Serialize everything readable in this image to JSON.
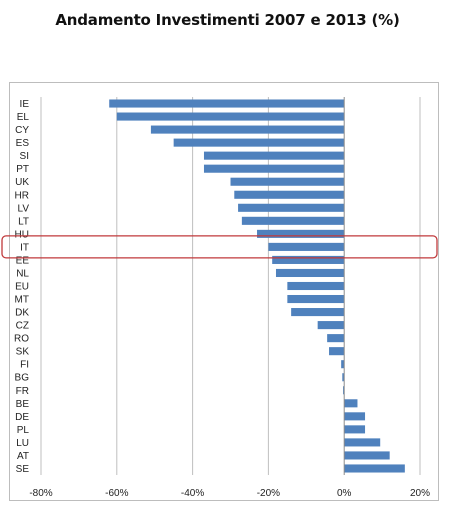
{
  "page": {
    "title": "Andamento Investimenti 2007 e 2013 (%)"
  },
  "colors": {
    "bar": "#4f81bd",
    "highlight": "#c0393b",
    "grid": "#bfbfbf",
    "axis": "#8c8c8c"
  },
  "chart_data": {
    "type": "bar",
    "orientation": "horizontal",
    "title": "Andamento Investimenti 2007 e 2013 (%)",
    "xlabel": "",
    "ylabel": "",
    "xlim": [
      -80,
      20
    ],
    "xticks": [
      -80,
      -60,
      -40,
      -20,
      0,
      20
    ],
    "xtick_labels": [
      "-80%",
      "-60%",
      "-40%",
      "-20%",
      "0%",
      "20%"
    ],
    "grid": true,
    "highlighted_category": "IT",
    "categories": [
      "IE",
      "EL",
      "CY",
      "ES",
      "SI",
      "PT",
      "UK",
      "HR",
      "LV",
      "LT",
      "HU",
      "IT",
      "EE",
      "NL",
      "EU",
      "MT",
      "DK",
      "CZ",
      "RO",
      "SK",
      "FI",
      "BG",
      "FR",
      "BE",
      "DE",
      "PL",
      "LU",
      "AT",
      "SE"
    ],
    "values": [
      -62,
      -60,
      -51,
      -45,
      -37,
      -37,
      -30,
      -29,
      -28,
      -27,
      -23,
      -20,
      -19,
      -18,
      -15,
      -15,
      -14,
      -7,
      -4.5,
      -4,
      -0.8,
      -0.5,
      -0.3,
      3.5,
      5.5,
      5.5,
      9.5,
      12,
      16
    ]
  }
}
